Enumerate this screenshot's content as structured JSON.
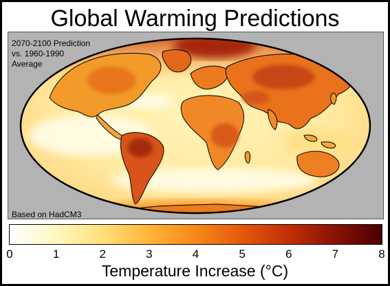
{
  "title": "Global Warming Predictions",
  "map": {
    "note_top": "2070-2100 Prediction\nvs. 1960-1990\nAverage",
    "note_bottom": "Based on HadCM3",
    "colors": {
      "ocean_low": "#fffbd8",
      "land_mid": "#f58a1c",
      "hot": "#b93a0a",
      "panel_bg": "#b3b3b3"
    }
  },
  "colorbar": {
    "label": "Temperature Increase (°C)",
    "min": 0,
    "max": 8,
    "ticks": [
      "0",
      "1",
      "2",
      "3",
      "4",
      "5",
      "6",
      "7",
      "8"
    ],
    "gradient_colors": [
      "#ffffff",
      "#fff7c0",
      "#ffe07a",
      "#ffb43a",
      "#f7881a",
      "#e35a0c",
      "#c03008",
      "#8a1206",
      "#4a0000"
    ]
  }
}
